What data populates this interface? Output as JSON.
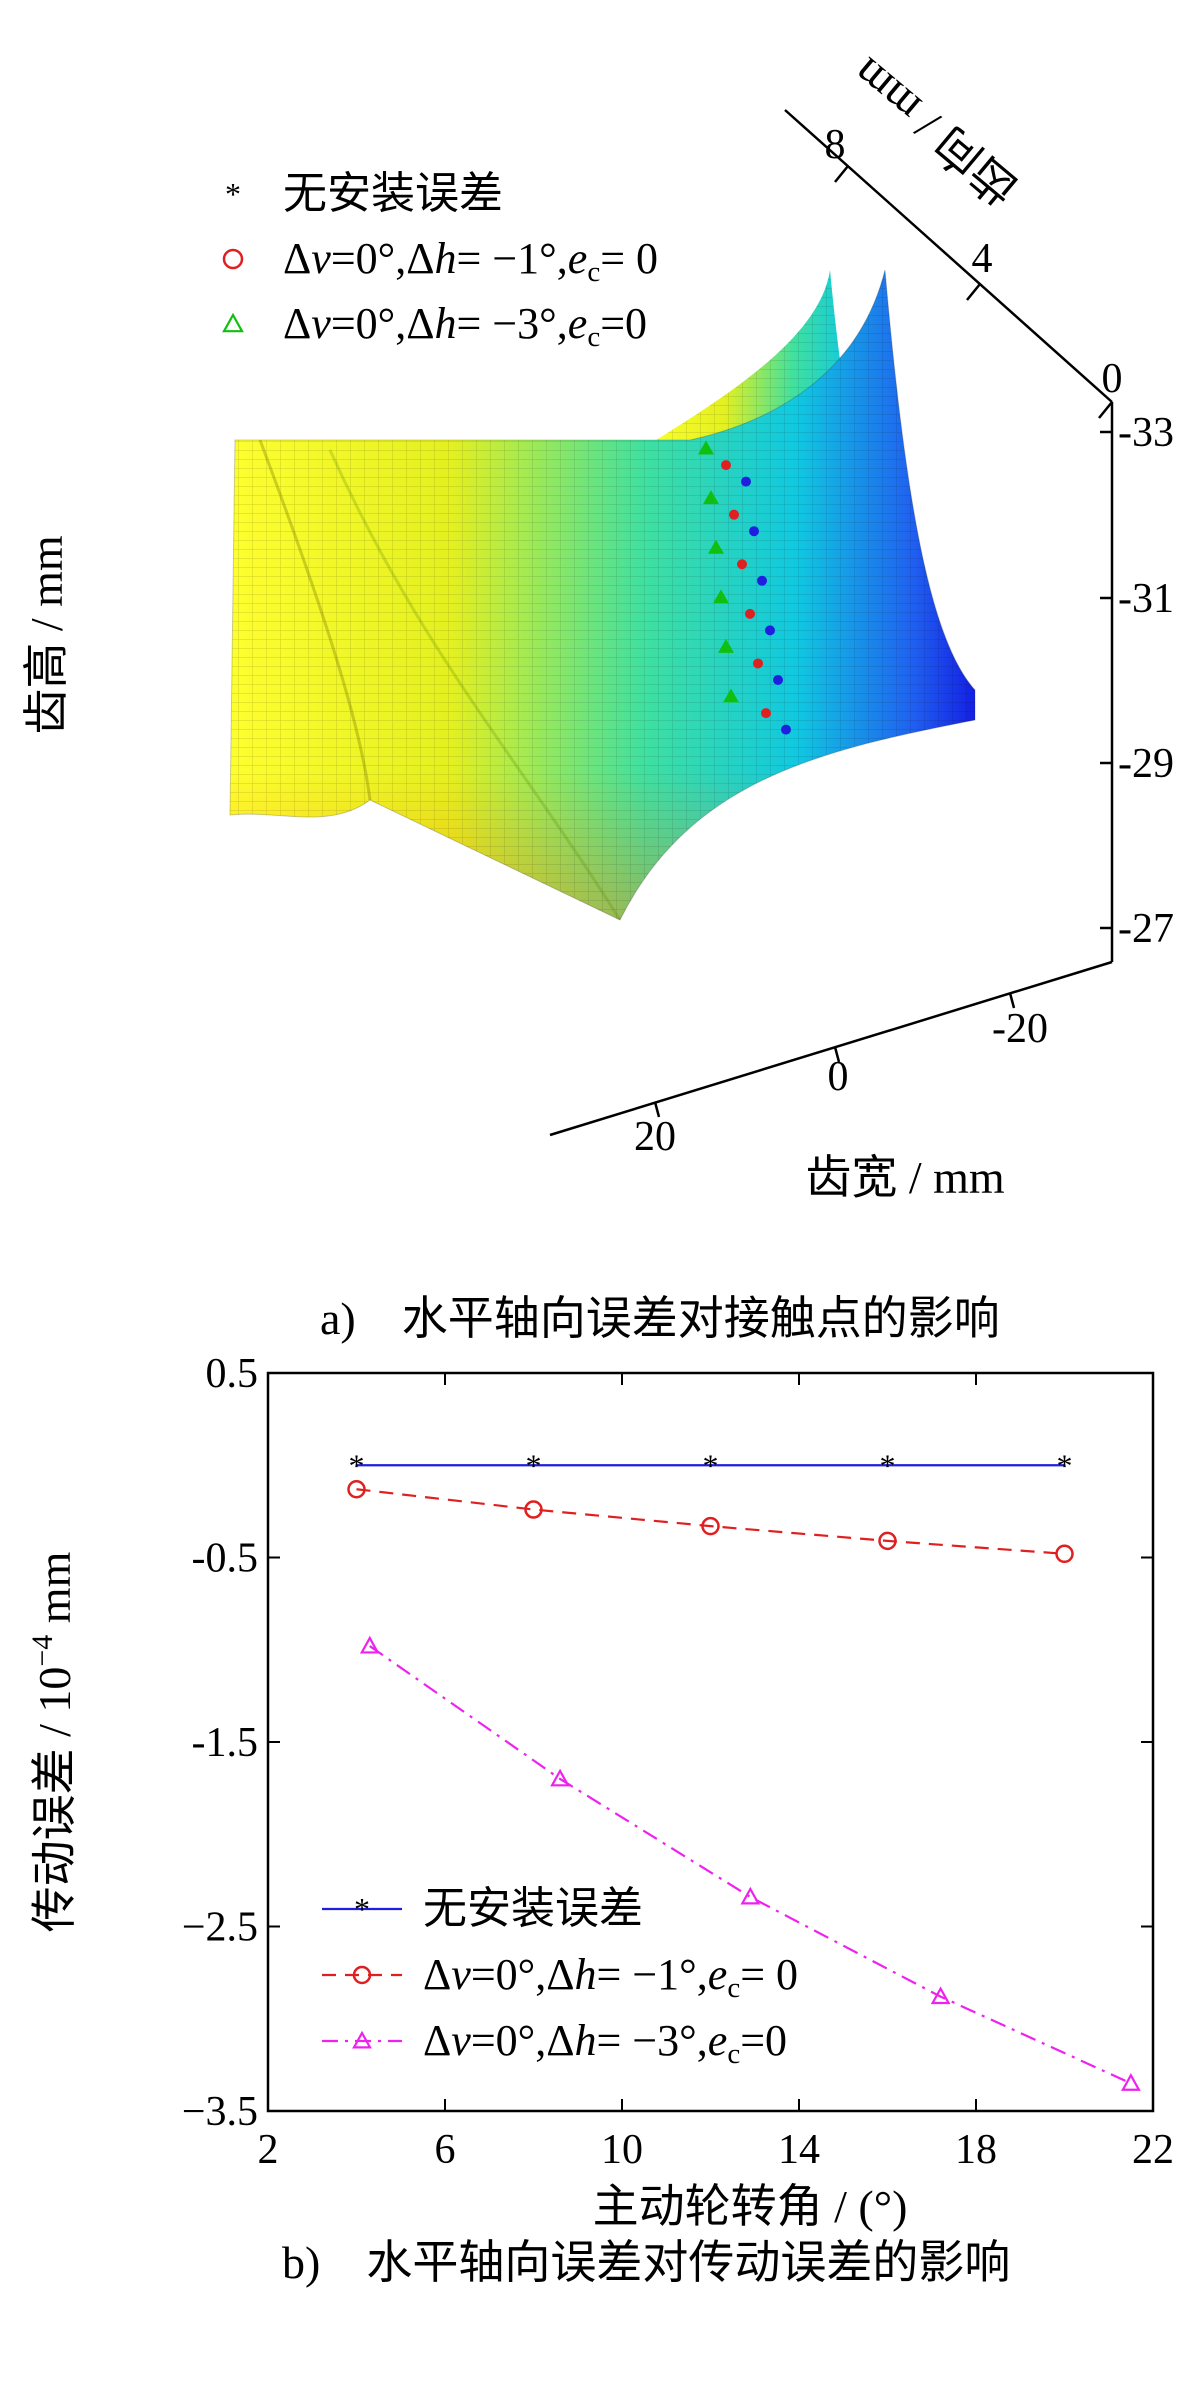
{
  "figure": {
    "caption_a": "a)　水平轴向误差对接触点的影响",
    "caption_b": "b)　水平轴向误差对传动误差的影响"
  },
  "colors": {
    "blue": "#1f1fe0",
    "red": "#e02020",
    "green": "#10c010",
    "magenta": "#ee22ee"
  },
  "chart_data": [
    {
      "type": "scatter",
      "subtype": "3d-surface-with-contact-points",
      "axes": {
        "depth": {
          "label": "齿向 / mm",
          "ticks": [
            "8",
            "4",
            "0"
          ]
        },
        "height": {
          "label": "齿高 / mm",
          "ticks": [
            "-33",
            "-31",
            "-29",
            "-27"
          ],
          "range": [
            -33,
            -27
          ]
        },
        "width": {
          "label": "齿宽 / mm",
          "ticks": [
            "-20",
            "0",
            "20"
          ]
        }
      },
      "legend": {
        "placement": "top-left",
        "entries": [
          {
            "symbol": "*",
            "color": "blue",
            "parts": [
              [
                "无安装误差",
                ""
              ]
            ]
          },
          {
            "symbol": "o",
            "color": "red",
            "parts": [
              [
                "Δ",
                ""
              ],
              [
                "v",
                "i"
              ],
              [
                "=0°,Δ",
                ""
              ],
              [
                "h",
                "i"
              ],
              [
                "= −1°,",
                ""
              ],
              [
                "e",
                "i"
              ],
              [
                "c",
                "sub"
              ],
              [
                "= 0",
                ""
              ]
            ]
          },
          {
            "symbol": "triangle",
            "color": "green",
            "parts": [
              [
                "Δ",
                ""
              ],
              [
                "v",
                "i"
              ],
              [
                "=0°,Δ",
                ""
              ],
              [
                "h",
                "i"
              ],
              [
                "= −3°,",
                ""
              ],
              [
                "e",
                "i"
              ],
              [
                "c",
                "sub"
              ],
              [
                "=0",
                ""
              ]
            ]
          }
        ]
      },
      "series": [
        {
          "name": "无安装误差",
          "color": "blue",
          "height": [
            -32.4,
            -31.8,
            -31.2,
            -30.6,
            -30.0,
            -29.4
          ]
        },
        {
          "name": "Δv=0°,Δh= −1°,ec= 0",
          "color": "red",
          "height": [
            -32.6,
            -32.0,
            -31.4,
            -30.8,
            -30.2,
            -29.6
          ]
        },
        {
          "name": "Δv=0°,Δh= −3°,ec=0",
          "color": "green",
          "height": [
            -32.8,
            -32.2,
            -31.6,
            -31.0,
            -30.4,
            -29.8
          ]
        }
      ]
    },
    {
      "type": "line",
      "ylabel_main": "传动误差 / 10",
      "ylabel_exp": "−4",
      "ylabel_unit": " mm",
      "xlabel": "主动轮转角 / (°)",
      "xlim": [
        2,
        22
      ],
      "ylim": [
        -3.5,
        0.5
      ],
      "xticks": [
        2,
        6,
        10,
        14,
        18,
        22
      ],
      "yticks": [
        0.5,
        -0.5,
        -1.5,
        -2.5,
        -3.5
      ],
      "ytick_labels": [
        "0.5",
        "-0.5",
        "-1.5",
        "−2.5",
        "−3.5"
      ],
      "legend": {
        "placement": "bottom-left",
        "entries": [
          {
            "parts": [
              [
                "无安装误差",
                ""
              ]
            ]
          },
          {
            "parts": [
              [
                "Δ",
                ""
              ],
              [
                "v",
                "i"
              ],
              [
                "=0°,Δ",
                ""
              ],
              [
                "h",
                "i"
              ],
              [
                "= −1°,",
                ""
              ],
              [
                "e",
                "i"
              ],
              [
                "c",
                "sub"
              ],
              [
                "= 0",
                ""
              ]
            ]
          },
          {
            "parts": [
              [
                "Δ",
                ""
              ],
              [
                "v",
                "i"
              ],
              [
                "=0°,Δ",
                ""
              ],
              [
                "h",
                "i"
              ],
              [
                "= −3°,",
                ""
              ],
              [
                "e",
                "i"
              ],
              [
                "c",
                "sub"
              ],
              [
                "=0",
                ""
              ]
            ]
          }
        ]
      },
      "series": [
        {
          "name": "无安装误差",
          "color": "blue",
          "marker": "*",
          "dash": "solid",
          "x": [
            4,
            8,
            12,
            16,
            20
          ],
          "y": [
            0.0,
            0.0,
            0.0,
            0.0,
            0.0
          ]
        },
        {
          "name": "Δv=0°,Δh= −1°,ec= 0",
          "color": "red",
          "marker": "o",
          "dash": "dashed",
          "x": [
            4,
            8,
            12,
            16,
            20
          ],
          "y": [
            -0.13,
            -0.24,
            -0.33,
            -0.41,
            -0.48
          ]
        },
        {
          "name": "Δv=0°,Δh= −3°,ec=0",
          "color": "magenta",
          "marker": "triangle",
          "dash": "dashdot",
          "x": [
            4.3,
            8.6,
            12.9,
            17.2,
            21.5
          ],
          "y": [
            -0.98,
            -1.7,
            -2.34,
            -2.88,
            -3.35
          ]
        }
      ]
    }
  ]
}
